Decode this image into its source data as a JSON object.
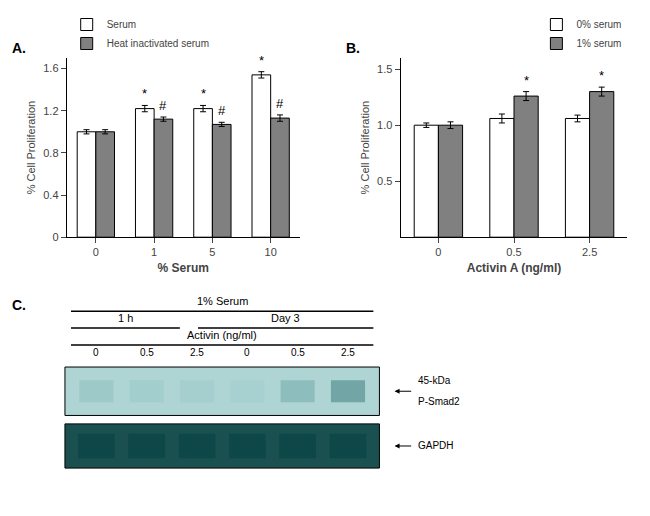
{
  "chart_data": [
    {
      "type": "bar",
      "title": "A.",
      "categories": [
        "0",
        "1",
        "5",
        "10"
      ],
      "series": [
        {
          "name": "Serum",
          "color": "#ffffff",
          "values": [
            1.0,
            1.22,
            1.22,
            1.54
          ],
          "errors": [
            0.02,
            0.03,
            0.03,
            0.03
          ],
          "annotations": [
            null,
            "*",
            "*",
            "*"
          ]
        },
        {
          "name": "Heat inactivated serum",
          "color": "#808080",
          "values": [
            1.0,
            1.12,
            1.07,
            1.13
          ],
          "errors": [
            0.02,
            0.02,
            0.02,
            0.03
          ],
          "annotations": [
            null,
            "#",
            "#",
            "#"
          ]
        }
      ],
      "xlabel": "% Serum",
      "ylabel": "% Cell Proliferation",
      "ylim": [
        0,
        1.7
      ],
      "yticks": [
        0,
        0.4,
        0.8,
        1.2,
        1.6
      ],
      "legend": "upper left",
      "grid": false
    },
    {
      "type": "bar",
      "title": "B.",
      "categories": [
        "0",
        "0.5",
        "2.5"
      ],
      "series": [
        {
          "name": "0% serum",
          "color": "#ffffff",
          "values": [
            1.0,
            1.06,
            1.06
          ],
          "errors": [
            0.02,
            0.04,
            0.03
          ]
        },
        {
          "name": "1% serum",
          "color": "#808080",
          "values": [
            1.0,
            1.26,
            1.3
          ],
          "errors": [
            0.03,
            0.04,
            0.04
          ],
          "annotations": [
            null,
            "*",
            "*"
          ]
        }
      ],
      "xlabel": "Activin A (ng/ml)",
      "ylabel": "% Cell Proliferation",
      "ylim": [
        0,
        1.6
      ],
      "yticks": [
        0.5,
        {
          "value": 1.0,
          "label": "1.0"
        },
        1.5
      ],
      "legend": "upper right",
      "grid": false
    },
    {
      "type": "blot",
      "title": "C.",
      "annotations": [
        "1% Serum",
        "1 h",
        "Day 3",
        "Activin (ng/ml)",
        "45-kDa",
        "P-Smad2",
        "GAPDH"
      ],
      "categories": [
        "0",
        "0.5",
        "2.5",
        "0",
        "0.5",
        "2.5"
      ],
      "colors": [
        "#aed4d4",
        "#1a5050"
      ],
      "tick_labels": false
    }
  ]
}
